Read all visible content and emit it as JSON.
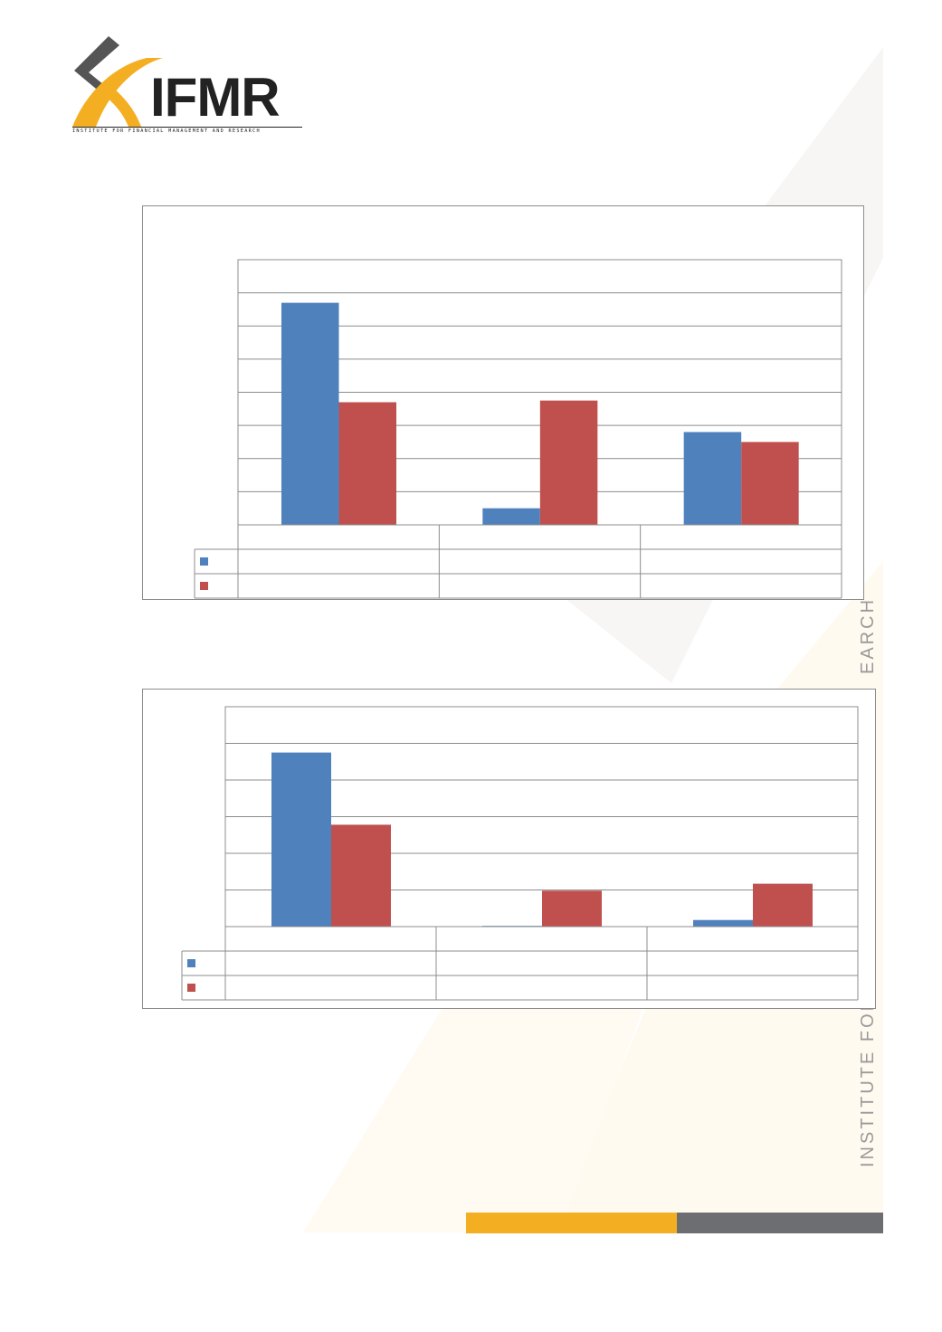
{
  "brand": {
    "wordmark": "IFMR",
    "tagline": "INSTITUTE FOR FINANCIAL MANAGEMENT AND RESEARCH",
    "side_text": "INSTITUTE FOR F",
    "side_text_2": "EARCH",
    "colors": {
      "gold": "#f4ae22",
      "grey": "#6d6e71",
      "dark": "#3a3a3a"
    }
  },
  "chart_data": [
    {
      "type": "bar",
      "title": "",
      "categories": [
        "",
        "",
        ""
      ],
      "ylim": [
        0,
        8
      ],
      "grid": true,
      "legend": "data-table-left",
      "series": [
        {
          "values": [
            6.7,
            0.5,
            2.8
          ],
          "color": "#4f81bd"
        },
        {
          "values": [
            3.7,
            3.75,
            2.5
          ],
          "color": "#c0504d"
        }
      ]
    },
    {
      "type": "bar",
      "title": "",
      "categories": [
        "",
        "",
        ""
      ],
      "ylim": [
        0,
        6
      ],
      "grid": true,
      "legend": "data-table-left",
      "series": [
        {
          "values": [
            4.75,
            0.02,
            0.18
          ],
          "color": "#4f81bd"
        },
        {
          "values": [
            2.78,
            0.98,
            1.17
          ],
          "color": "#c0504d"
        }
      ]
    }
  ]
}
